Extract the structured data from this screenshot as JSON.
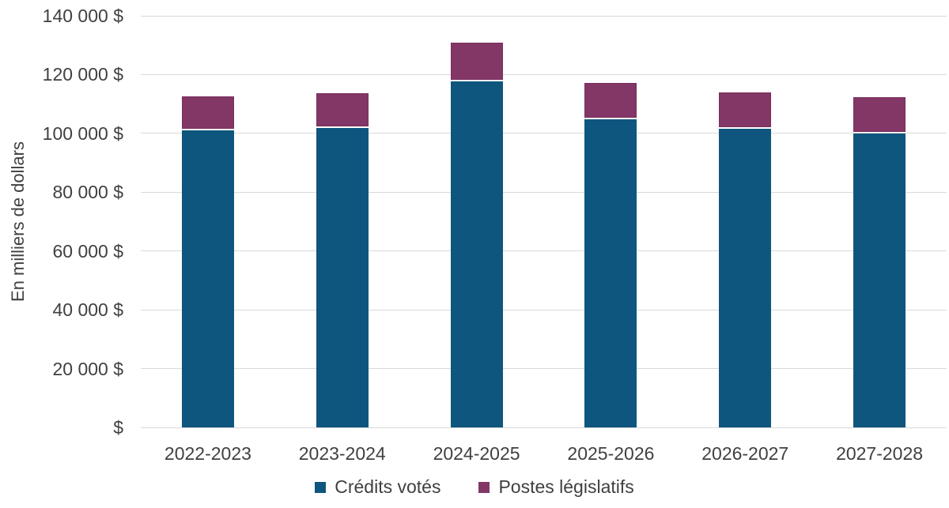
{
  "chart_data": {
    "type": "bar",
    "stacked": true,
    "title": "",
    "ylabel": "En milliers de dollars",
    "xlabel": "",
    "categories": [
      "2022-2023",
      "2023-2024",
      "2024-2025",
      "2025-2026",
      "2026-2027",
      "2027-2028"
    ],
    "series": [
      {
        "name": "Crédits votés",
        "color": "#0E567E",
        "border_color": "#0E567E",
        "values": [
          101000,
          101900,
          117700,
          104700,
          101600,
          100100
        ]
      },
      {
        "name": "Postes législatifs",
        "color": "#833766",
        "border_color": "#7A2D5C",
        "values": [
          11500,
          11800,
          13200,
          12600,
          12400,
          12200
        ]
      }
    ],
    "ylim": [
      0,
      140000
    ],
    "ytick_step": 20000,
    "yticks": [
      {
        "value": 0,
        "label": "$"
      },
      {
        "value": 20000,
        "label": "20 000 $"
      },
      {
        "value": 40000,
        "label": "40 000 $"
      },
      {
        "value": 60000,
        "label": "60 000 $"
      },
      {
        "value": 80000,
        "label": "80 000 $"
      },
      {
        "value": 100000,
        "label": "100 000 $"
      },
      {
        "value": 120000,
        "label": "120 000 $"
      },
      {
        "value": 140000,
        "label": "140 000 $"
      }
    ],
    "grid": true,
    "gridline_color": "#D9D9D9",
    "text_color": "#404040",
    "legend_position": "bottom"
  }
}
